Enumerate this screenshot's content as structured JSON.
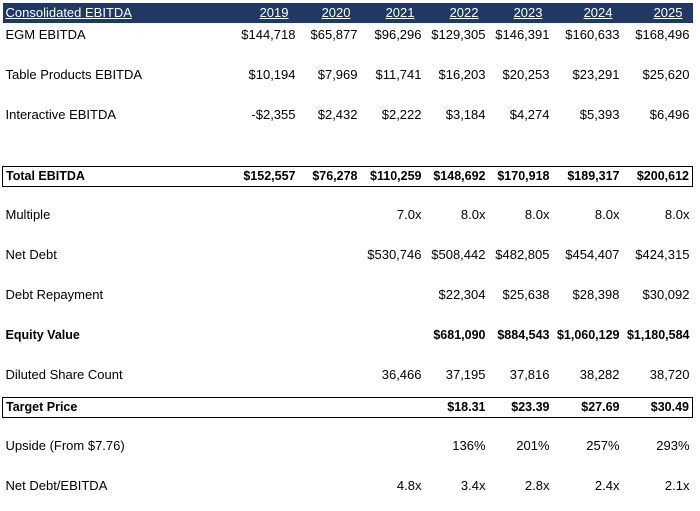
{
  "table": {
    "header": {
      "title": "Consolidated EBITDA",
      "years": [
        "2019",
        "2020",
        "2021",
        "2022",
        "2023",
        "2024",
        "2025"
      ]
    },
    "rows": [
      {
        "label": "EGM EBITDA",
        "values": [
          "$144,718",
          "$65,877",
          "$96,296",
          "$129,305",
          "$146,391",
          "$160,633",
          "$168,496"
        ]
      },
      {
        "label": "Table Products EBITDA",
        "values": [
          "$10,194",
          "$7,969",
          "$11,741",
          "$16,203",
          "$20,253",
          "$23,291",
          "$25,620"
        ]
      },
      {
        "label": "Interactive EBITDA",
        "values": [
          "-$2,355",
          "$2,432",
          "$2,222",
          "$3,184",
          "$4,274",
          "$5,393",
          "$6,496"
        ]
      },
      {
        "label": "Total EBITDA",
        "values": [
          "$152,557",
          "$76,278",
          "$110,259",
          "$148,692",
          "$170,918",
          "$189,317",
          "$200,612"
        ]
      },
      {
        "label": "Multiple",
        "values": [
          "",
          "",
          "7.0x",
          "8.0x",
          "8.0x",
          "8.0x",
          "8.0x"
        ]
      },
      {
        "label": "Net Debt",
        "values": [
          "",
          "",
          "$530,746",
          "$508,442",
          "$482,805",
          "$454,407",
          "$424,315"
        ]
      },
      {
        "label": "Debt Repayment",
        "values": [
          "",
          "",
          "",
          "$22,304",
          "$25,638",
          "$28,398",
          "$30,092"
        ]
      },
      {
        "label": "Equity Value",
        "values": [
          "",
          "",
          "",
          "$681,090",
          "$884,543",
          "$1,060,129",
          "$1,180,584"
        ]
      },
      {
        "label": "Diluted Share Count",
        "values": [
          "",
          "",
          "36,466",
          "37,195",
          "37,816",
          "38,282",
          "38,720"
        ]
      },
      {
        "label": "Target Price",
        "values": [
          "",
          "",
          "",
          "$18.31",
          "$23.39",
          "$27.69",
          "$30.49"
        ]
      },
      {
        "label": "Upside (From $7.76)",
        "values": [
          "",
          "",
          "",
          "136%",
          "201%",
          "257%",
          "293%"
        ]
      },
      {
        "label": "Net Debt/EBITDA",
        "values": [
          "",
          "",
          "4.8x",
          "3.4x",
          "2.8x",
          "2.4x",
          "2.1x"
        ]
      }
    ]
  },
  "colors": {
    "header_bg": "#1f3864",
    "header_text": "#ffffff",
    "border": "#000000"
  }
}
